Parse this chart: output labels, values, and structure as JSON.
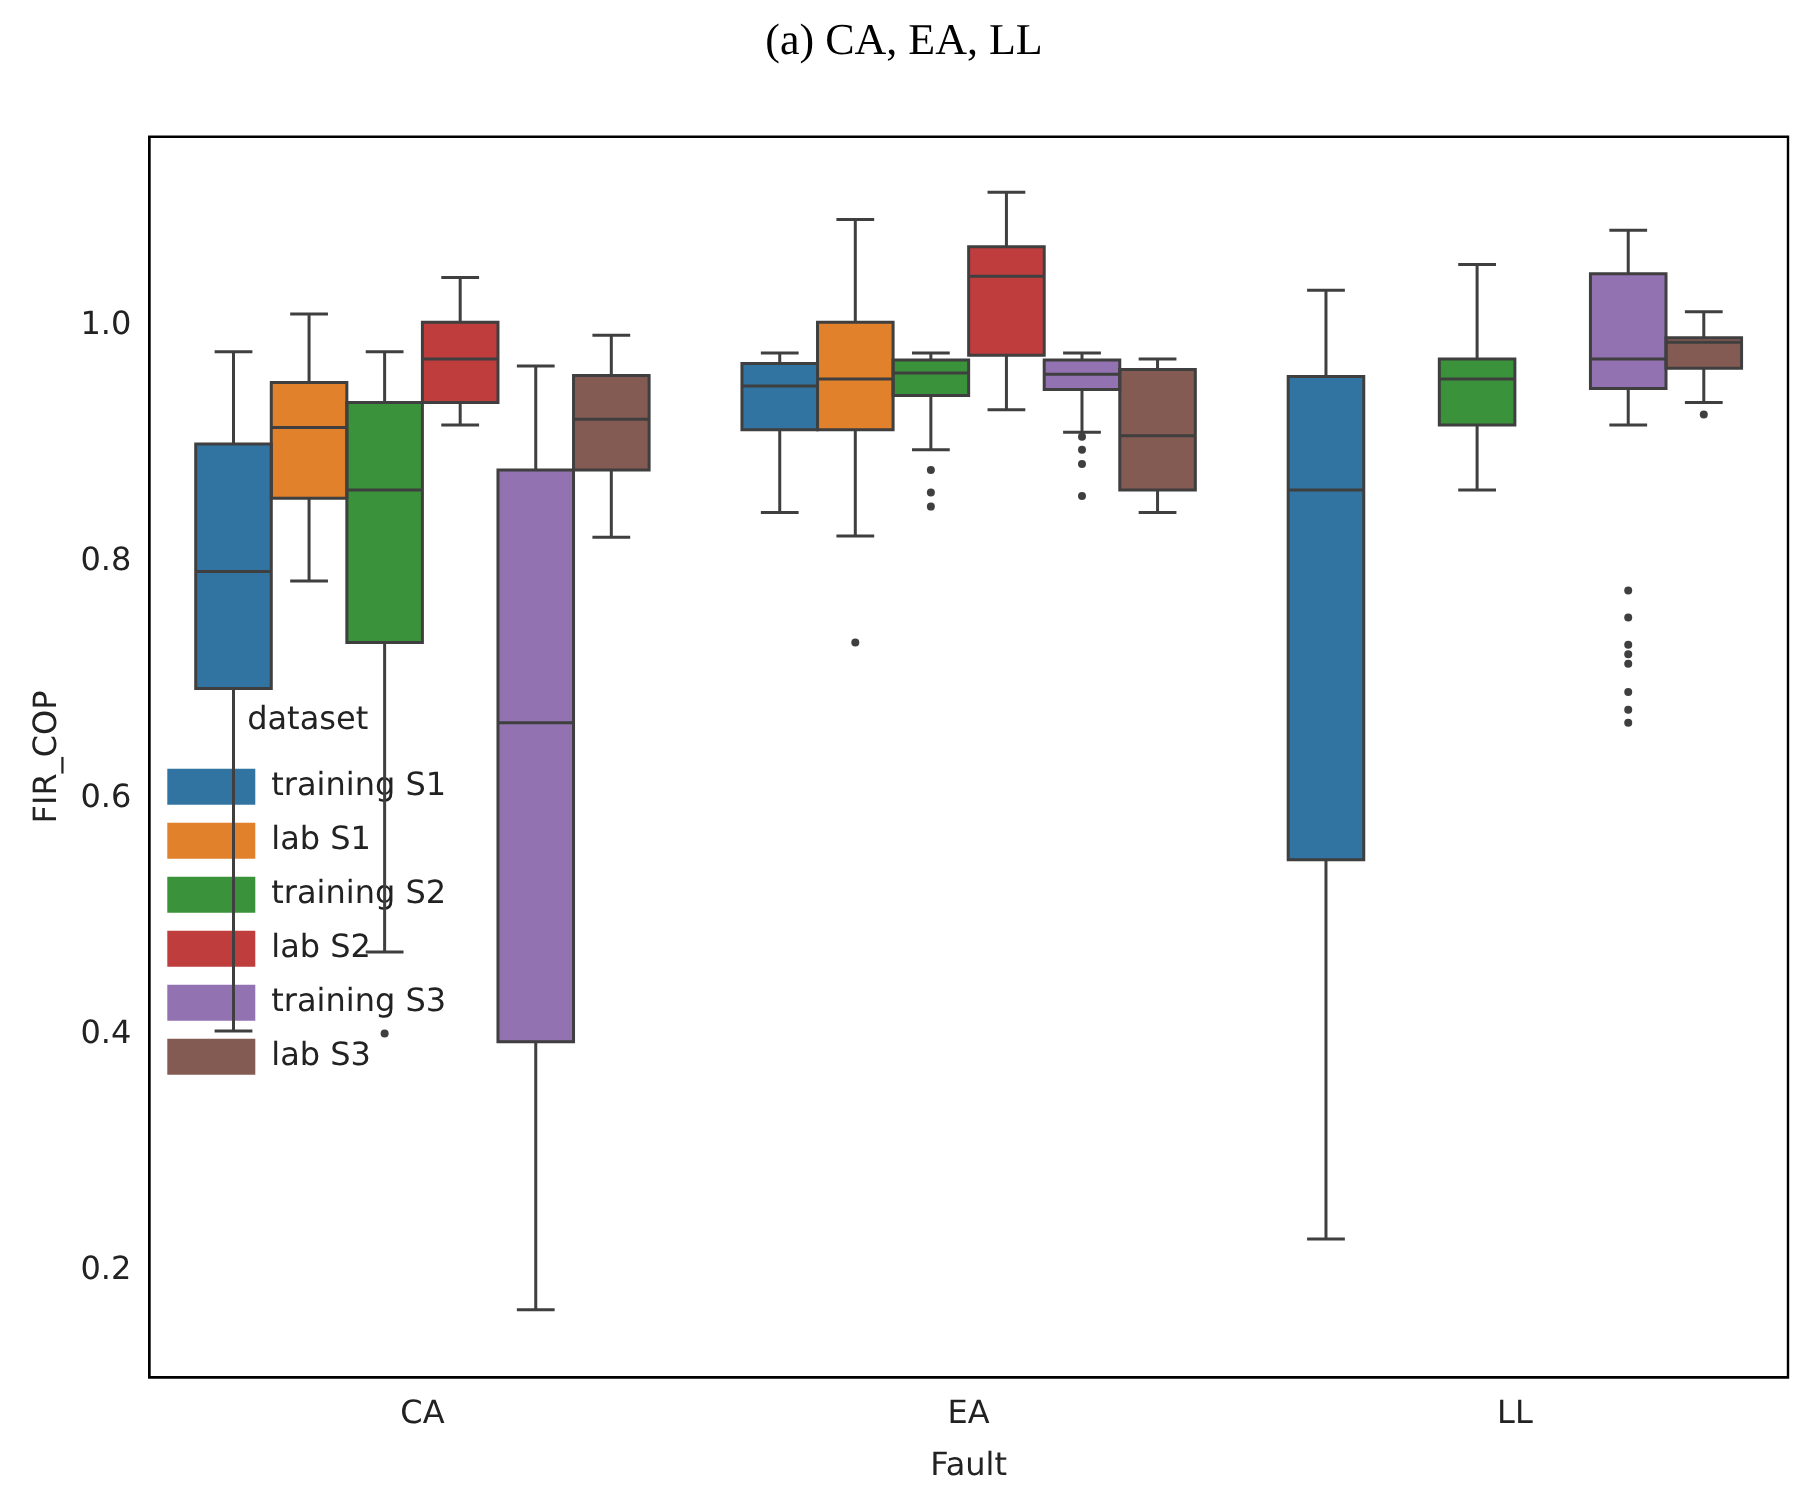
{
  "chart_data": {
    "type": "box",
    "title": "(a) CA, EA, LL",
    "xlabel": "Fault",
    "ylabel": "FIR_COP",
    "legend_title": "dataset",
    "legend": "bottom",
    "grid": false,
    "categories": [
      "CA",
      "EA",
      "LL"
    ],
    "ylim": [
      0.11,
      1.16
    ],
    "yticks": [
      {
        "value": 0.2,
        "label": "0.2"
      },
      {
        "value": 0.4,
        "label": "0.4"
      },
      {
        "value": 0.6,
        "label": "0.6"
      },
      {
        "value": 0.8,
        "label": "0.8"
      },
      {
        "value": 1.0,
        "label": "1.0"
      }
    ],
    "series": [
      {
        "name": "training S1",
        "color": "#3274a1",
        "boxes": [
          {
            "low": 0.403,
            "q1": 0.693,
            "median": 0.792,
            "q3": 0.9,
            "high": 0.978
          },
          {
            "low": 0.842,
            "q1": 0.912,
            "median": 0.949,
            "q3": 0.968,
            "high": 0.977
          },
          {
            "low": 0.227,
            "q1": 0.548,
            "median": 0.861,
            "q3": 0.957,
            "high": 1.03
          }
        ]
      },
      {
        "name": "lab S1",
        "color": "#e1812c",
        "boxes": [
          {
            "low": 0.784,
            "q1": 0.854,
            "median": 0.914,
            "q3": 0.952,
            "high": 1.01
          },
          {
            "low": 0.822,
            "q1": 0.912,
            "median": 0.955,
            "q3": 1.003,
            "high": 1.09,
            "outliers": [
              0.732
            ]
          },
          null
        ]
      },
      {
        "name": "training S2",
        "color": "#3a923a",
        "boxes": [
          {
            "low": 0.47,
            "q1": 0.732,
            "median": 0.861,
            "q3": 0.935,
            "high": 0.978,
            "outliers": [
              0.401
            ]
          },
          {
            "low": 0.895,
            "q1": 0.941,
            "median": 0.96,
            "q3": 0.971,
            "high": 0.977,
            "outliers": [
              0.878,
              0.859,
              0.847
            ]
          },
          {
            "low": 0.861,
            "q1": 0.916,
            "median": 0.955,
            "q3": 0.972,
            "high": 1.052
          }
        ]
      },
      {
        "name": "lab S2",
        "color": "#c03d3e",
        "boxes": [
          {
            "low": 0.916,
            "q1": 0.935,
            "median": 0.972,
            "q3": 1.003,
            "high": 1.041
          },
          {
            "low": 0.929,
            "q1": 0.975,
            "median": 1.042,
            "q3": 1.067,
            "high": 1.113
          },
          null
        ]
      },
      {
        "name": "training S3",
        "color": "#9372b2",
        "boxes": [
          {
            "low": 0.167,
            "q1": 0.394,
            "median": 0.664,
            "q3": 0.878,
            "high": 0.966
          },
          {
            "low": 0.91,
            "q1": 0.946,
            "median": 0.959,
            "q3": 0.971,
            "high": 0.977,
            "outliers": [
              0.906,
              0.895,
              0.883,
              0.856
            ]
          },
          {
            "low": 0.916,
            "q1": 0.947,
            "median": 0.972,
            "q3": 1.044,
            "high": 1.081,
            "outliers": [
              0.776,
              0.753,
              0.73,
              0.722,
              0.714,
              0.69,
              0.675,
              0.664
            ]
          }
        ]
      },
      {
        "name": "lab S3",
        "color": "#845b53",
        "boxes": [
          {
            "low": 0.821,
            "q1": 0.878,
            "median": 0.921,
            "q3": 0.958,
            "high": 0.992
          },
          {
            "low": 0.842,
            "q1": 0.861,
            "median": 0.907,
            "q3": 0.963,
            "high": 0.972
          },
          {
            "low": 0.935,
            "q1": 0.964,
            "median": 0.986,
            "q3": 0.99,
            "high": 1.012,
            "outliers": [
              0.925
            ]
          }
        ]
      }
    ]
  }
}
